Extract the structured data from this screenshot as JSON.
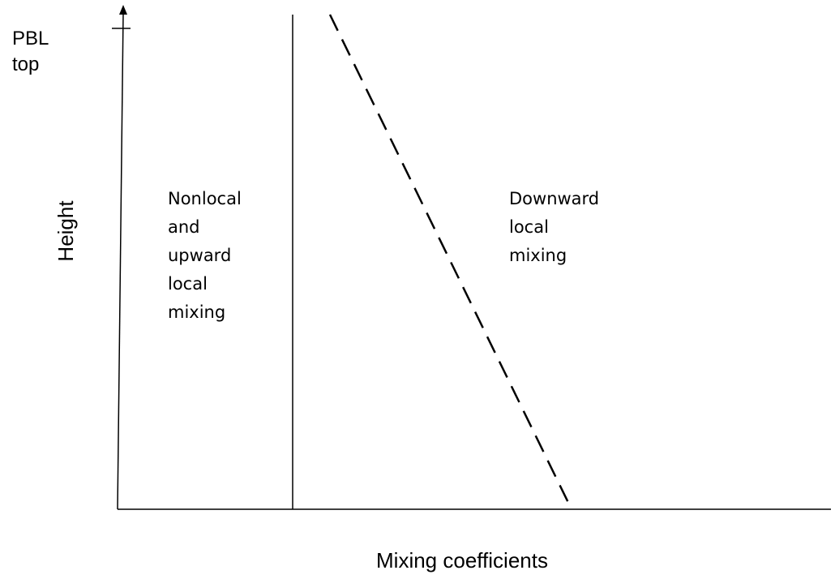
{
  "axes": {
    "y_top_label": [
      "PBL",
      "top"
    ],
    "y_label": "Height",
    "x_label": "Mixing coefficients"
  },
  "regions": [
    {
      "label": [
        "Nonlocal",
        "and",
        "upward",
        "local",
        "mixing"
      ]
    },
    {
      "label": [
        "Downward",
        "local",
        "mixing"
      ]
    }
  ]
}
